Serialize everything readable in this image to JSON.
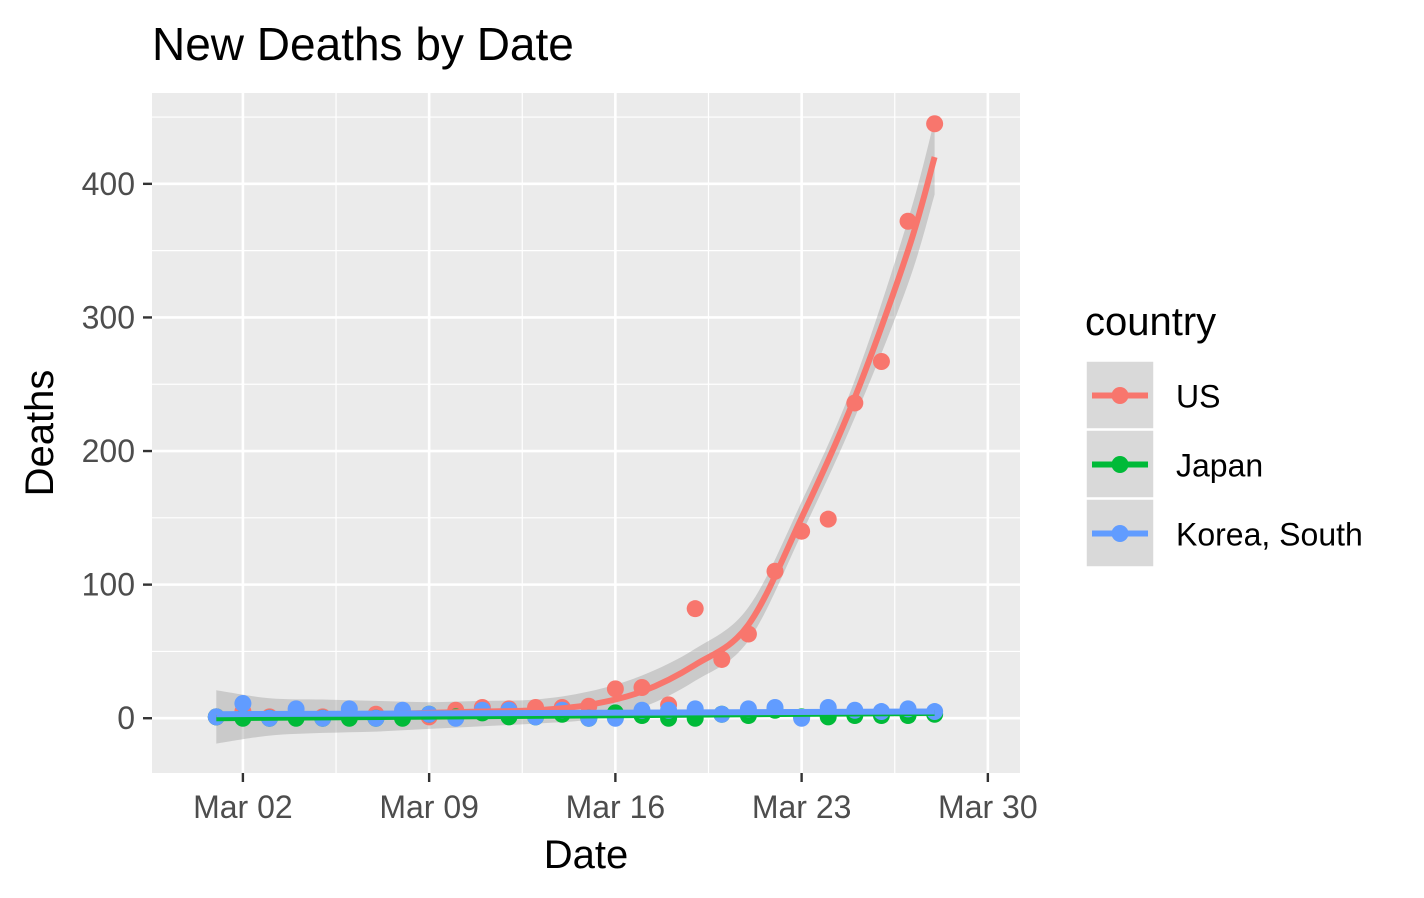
{
  "chart_data": {
    "type": "scatter",
    "title": "New Deaths by Date",
    "xlabel": "Date",
    "ylabel": "Deaths",
    "x_axis_type": "date",
    "x_ticks": [
      "2020-03-02",
      "2020-03-09",
      "2020-03-16",
      "2020-03-23",
      "2020-03-30"
    ],
    "x_tick_labels": [
      "Mar 02",
      "Mar 09",
      "Mar 16",
      "Mar 23",
      "Mar 30"
    ],
    "xlim": [
      "2020-02-27 14:00",
      "2020-03-31 05:00"
    ],
    "y_ticks": [
      0,
      100,
      200,
      300,
      400
    ],
    "y_tick_labels": [
      "0",
      "100",
      "200",
      "300",
      "400"
    ],
    "ylim": [
      -41,
      468
    ],
    "grid": true,
    "smooth": true,
    "panel_background": "#ebebeb",
    "grid_color": "#ffffff",
    "legend": {
      "title": "country",
      "position": "right",
      "entries": [
        "US",
        "Japan",
        "Korea, South"
      ]
    },
    "series": [
      {
        "name": "US",
        "color": "#f8766d",
        "x": [
          "2020-03-01",
          "2020-03-02",
          "2020-03-03",
          "2020-03-04",
          "2020-03-05",
          "2020-03-06",
          "2020-03-07",
          "2020-03-08",
          "2020-03-09",
          "2020-03-10",
          "2020-03-11",
          "2020-03-12",
          "2020-03-13",
          "2020-03-14",
          "2020-03-15",
          "2020-03-16",
          "2020-03-17",
          "2020-03-18",
          "2020-03-19",
          "2020-03-20",
          "2020-03-21",
          "2020-03-22",
          "2020-03-23",
          "2020-03-24",
          "2020-03-25",
          "2020-03-26",
          "2020-03-27",
          "2020-03-28"
        ],
        "values": [
          1,
          5,
          1,
          4,
          1,
          3,
          3,
          4,
          1,
          6,
          8,
          7,
          8,
          8,
          9,
          22,
          23,
          10,
          82,
          44,
          63,
          110,
          140,
          149,
          236,
          267,
          372,
          445
        ],
        "smooth": {
          "x": [
            "2020-03-01",
            "2020-03-03",
            "2020-03-05",
            "2020-03-07",
            "2020-03-09",
            "2020-03-11",
            "2020-03-13",
            "2020-03-15",
            "2020-03-17",
            "2020-03-19",
            "2020-03-21",
            "2020-03-23",
            "2020-03-25",
            "2020-03-27",
            "2020-03-28"
          ],
          "values": [
            1,
            2,
            3,
            3,
            4,
            5,
            6,
            10,
            20,
            40,
            70,
            150,
            240,
            350,
            420
          ],
          "ci_low": [
            -19,
            -13,
            -11,
            -10,
            -8,
            -6,
            -4,
            -1,
            8,
            28,
            58,
            138,
            225,
            325,
            392
          ],
          "ci_high": [
            21,
            15,
            14,
            13,
            12,
            13,
            14,
            20,
            32,
            52,
            83,
            162,
            253,
            373,
            448
          ]
        }
      },
      {
        "name": "Japan",
        "color": "#00ba38",
        "x": [
          "2020-03-01",
          "2020-03-02",
          "2020-03-03",
          "2020-03-04",
          "2020-03-05",
          "2020-03-06",
          "2020-03-07",
          "2020-03-08",
          "2020-03-09",
          "2020-03-10",
          "2020-03-11",
          "2020-03-12",
          "2020-03-13",
          "2020-03-14",
          "2020-03-15",
          "2020-03-16",
          "2020-03-17",
          "2020-03-18",
          "2020-03-19",
          "2020-03-20",
          "2020-03-21",
          "2020-03-22",
          "2020-03-23",
          "2020-03-24",
          "2020-03-25",
          "2020-03-26",
          "2020-03-27",
          "2020-03-28"
        ],
        "values": [
          1,
          0,
          0,
          0,
          0,
          0,
          0,
          0,
          3,
          1,
          4,
          1,
          1,
          3,
          0,
          4,
          2,
          0,
          0,
          3,
          2,
          6,
          1,
          1,
          2,
          2,
          2,
          3
        ],
        "smooth": {
          "x": [
            "2020-03-01",
            "2020-03-28"
          ],
          "values": [
            0,
            4
          ]
        }
      },
      {
        "name": "Korea, South",
        "color": "#619cff",
        "x": [
          "2020-03-01",
          "2020-03-02",
          "2020-03-03",
          "2020-03-04",
          "2020-03-05",
          "2020-03-06",
          "2020-03-07",
          "2020-03-08",
          "2020-03-09",
          "2020-03-10",
          "2020-03-11",
          "2020-03-12",
          "2020-03-13",
          "2020-03-14",
          "2020-03-15",
          "2020-03-16",
          "2020-03-17",
          "2020-03-18",
          "2020-03-19",
          "2020-03-20",
          "2020-03-21",
          "2020-03-22",
          "2020-03-23",
          "2020-03-24",
          "2020-03-25",
          "2020-03-26",
          "2020-03-27",
          "2020-03-28"
        ],
        "values": [
          1,
          11,
          0,
          7,
          0,
          7,
          0,
          6,
          3,
          0,
          6,
          6,
          1,
          6,
          0,
          0,
          6,
          6,
          7,
          3,
          7,
          8,
          0,
          8,
          6,
          5,
          7,
          5
        ],
        "smooth": {
          "x": [
            "2020-03-01",
            "2020-03-28"
          ],
          "values": [
            3,
            5
          ]
        }
      }
    ]
  }
}
